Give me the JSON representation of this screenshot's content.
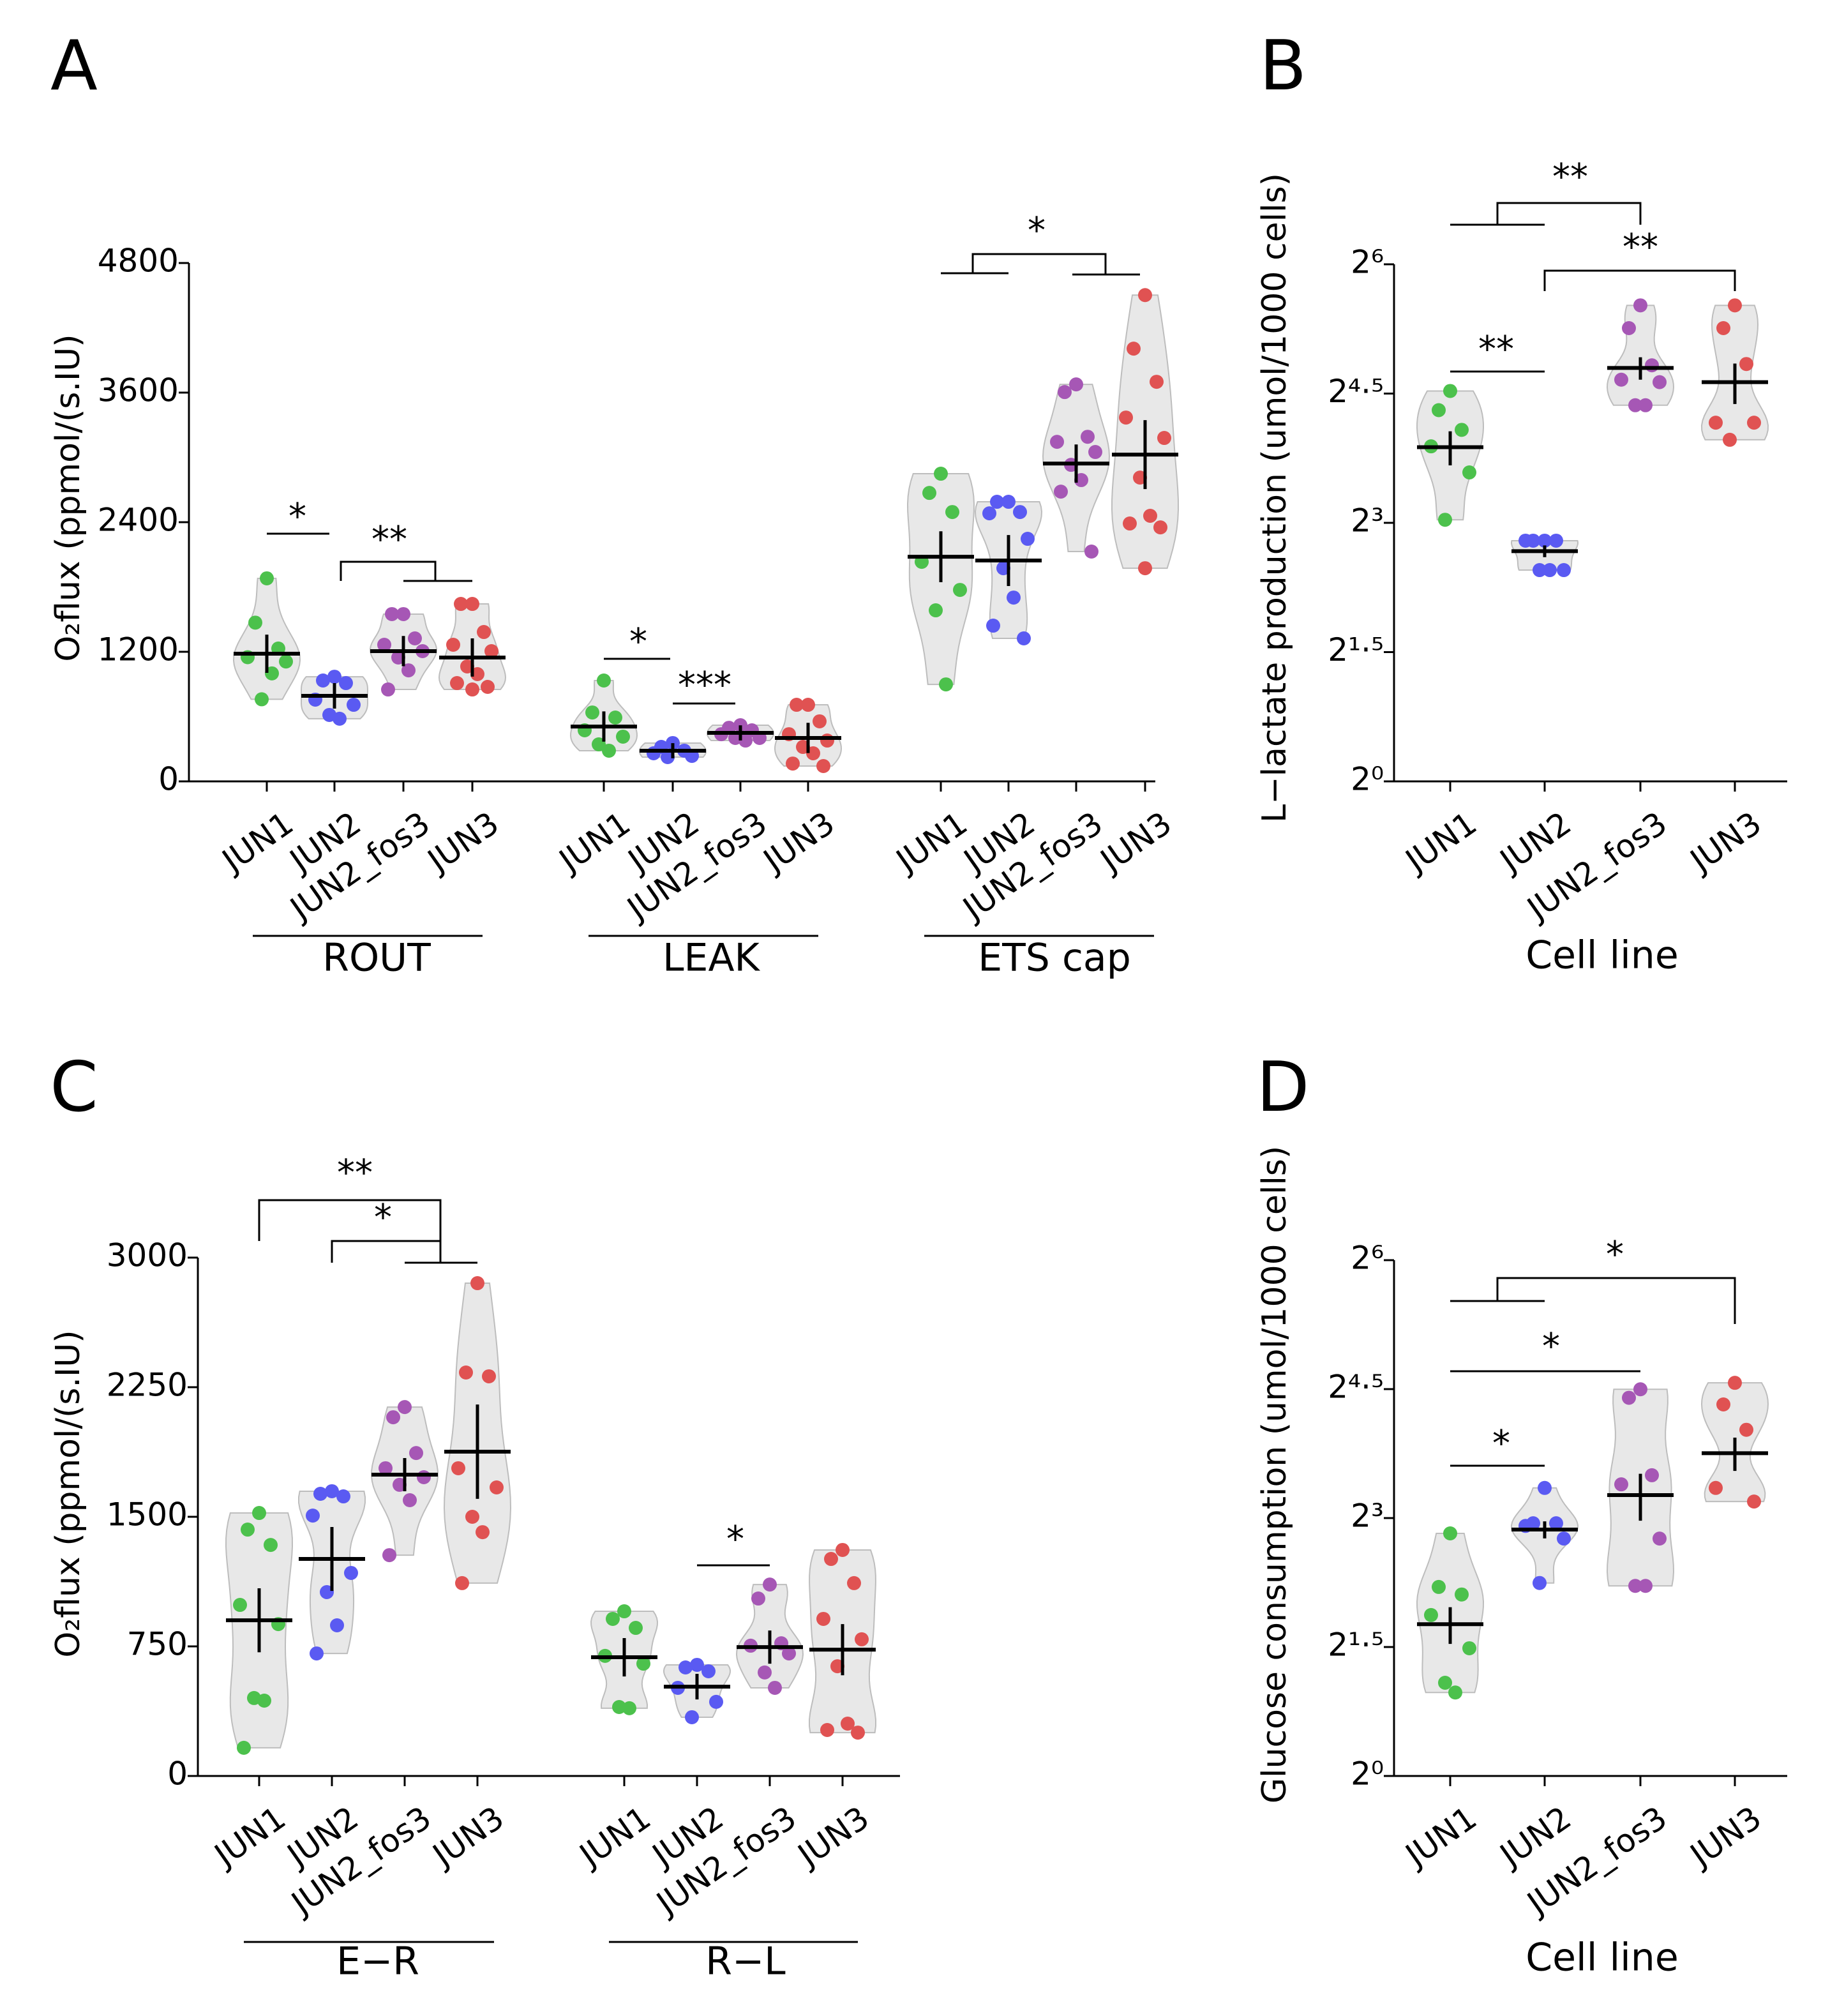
{
  "chart_data": [
    {
      "type": "violin",
      "panel_label": "A",
      "ylabel": "O₂flux (ppmol/(s.IU)",
      "ylim": [
        0,
        4800
      ],
      "yticks": [
        0,
        1200,
        2400,
        3600,
        4800
      ],
      "annotations": [
        "*",
        "**",
        "*",
        "***",
        "*"
      ],
      "groups": [
        {
          "name": "ROUT",
          "series": [
            {
              "name": "JUN1",
              "color": "#4cc14c",
              "values": [
                1880,
                1470,
                1230,
                1150,
                1110,
                760,
                1000
              ],
              "mean": 1182,
              "sem": 177
            },
            {
              "name": "JUN2",
              "color": "#5a5af2",
              "values": [
                969,
                934,
                910,
                757,
                709,
                615,
                580
              ],
              "mean": 792,
              "sem": 118
            },
            {
              "name": "JUN2_fos3",
              "color": "#a657b5",
              "values": [
                1549,
                1549,
                1324,
                1265,
                1206,
                1147,
                1028,
                851
              ],
              "mean": 1206,
              "sem": 140
            },
            {
              "name": "JUN3",
              "color": "#e05252",
              "values": [
                1643,
                1643,
                1383,
                1265,
                1206,
                1064,
                993,
                910,
                875,
                851
              ],
              "mean": 1147,
              "sem": 177
            }
          ]
        },
        {
          "name": "LEAK",
          "series": [
            {
              "name": "JUN1",
              "color": "#4cc14c",
              "values": [
                934,
                638,
                591,
                473,
                414,
                343,
                284
              ],
              "mean": 508,
              "sem": 140
            },
            {
              "name": "JUN2",
              "color": "#5a5af2",
              "values": [
                355,
                319,
                284,
                260,
                236,
                225
              ],
              "mean": 284,
              "sem": 70
            },
            {
              "name": "JUN2_fos3",
              "color": "#a657b5",
              "values": [
                520,
                496,
                473,
                437,
                402,
                402,
                378
              ],
              "mean": 449,
              "sem": 70
            },
            {
              "name": "JUN3",
              "color": "#e05252",
              "values": [
                709,
                709,
                556,
                437,
                378,
                319,
                260,
                165,
                142
              ],
              "mean": 402,
              "sem": 140
            }
          ]
        },
        {
          "name": "ETS cap",
          "series": [
            {
              "name": "JUN1",
              "color": "#4cc14c",
              "values": [
                2849,
                2671,
                2494,
                2033,
                1773,
                1584,
                898
              ],
              "mean": 2080,
              "sem": 236
            },
            {
              "name": "JUN2",
              "color": "#5a5af2",
              "values": [
                2589,
                2589,
                2494,
                2482,
                2246,
                1974,
                1702,
                1442,
                1324
              ],
              "mean": 2045,
              "sem": 236
            },
            {
              "name": "JUN2_fos3",
              "color": "#a657b5",
              "values": [
                3676,
                3605,
                3191,
                3144,
                3050,
                2931,
                2790,
                2683,
                2128
              ],
              "mean": 2943,
              "sem": 177
            },
            {
              "name": "JUN3",
              "color": "#e05252",
              "values": [
                4503,
                4007,
                3700,
                3369,
                3180,
                2813,
                2459,
                2388,
                2352,
                1974
              ],
              "mean": 3026,
              "sem": 319
            }
          ]
        }
      ]
    },
    {
      "type": "violin",
      "panel_label": "B",
      "ylabel": "L−lactate production (umol/1000 cells)",
      "xlabel": "Cell line",
      "yscale": "log2",
      "ylim": [
        1,
        64
      ],
      "yticks": [
        {
          "value": 1,
          "label": "2⁰"
        },
        {
          "value": 2.8284,
          "label": "2¹·⁵"
        },
        {
          "value": 8,
          "label": "2³"
        },
        {
          "value": 22.627,
          "label": "2⁴·⁵"
        },
        {
          "value": 64,
          "label": "2⁶"
        }
      ],
      "annotations": [
        "**",
        "**",
        "**"
      ],
      "series": [
        {
          "name": "JUN1",
          "color": "#4cc14c",
          "values": [
            23.1,
            19.8,
            16.9,
            14.8,
            12.0,
            8.2
          ],
          "mean": 14.7,
          "sem": 2.0
        },
        {
          "name": "JUN2",
          "color": "#5a5af2",
          "values": [
            6.93,
            6.93,
            6.93,
            6.93,
            5.47,
            5.47,
            5.47
          ],
          "mean": 6.37,
          "sem": 0.3
        },
        {
          "name": "JUN2_fos3",
          "color": "#a657b5",
          "values": [
            46.0,
            38.3,
            28.4,
            25.3,
            24.8,
            20.6,
            20.6
          ],
          "mean": 27.8,
          "sem": 2.5
        },
        {
          "name": "JUN3",
          "color": "#e05252",
          "values": [
            46.0,
            38.3,
            28.7,
            17.9,
            17.9,
            15.6
          ],
          "mean": 24.8,
          "sem": 4.0
        }
      ]
    },
    {
      "type": "violin",
      "panel_label": "C",
      "ylabel": "O₂flux (ppmol/(s.IU)",
      "ylim": [
        0,
        3000
      ],
      "yticks": [
        0,
        750,
        1500,
        2250,
        3000
      ],
      "annotations": [
        "**",
        "*",
        "*"
      ],
      "groups": [
        {
          "name": "E−R",
          "series": [
            {
              "name": "JUN1",
              "color": "#4cc14c",
              "values": [
                1522,
                1426,
                1337,
                990,
                879,
                451,
                436,
                163
              ],
              "mean": 901,
              "sem": 185
            },
            {
              "name": "JUN2",
              "color": "#5a5af2",
              "values": [
                1648,
                1633,
                1618,
                1507,
                1175,
                1064,
                872,
                709
              ],
              "mean": 1256,
              "sem": 185
            },
            {
              "name": "JUN2_fos3",
              "color": "#a657b5",
              "values": [
                2135,
                2076,
                1869,
                1781,
                1729,
                1685,
                1596,
                1278
              ],
              "mean": 1744,
              "sem": 96
            },
            {
              "name": "JUN3",
              "color": "#e05252",
              "values": [
                2852,
                2335,
                2313,
                1781,
                1670,
                1500,
                1411,
                1116
              ],
              "mean": 1877,
              "sem": 273
            }
          ]
        },
        {
          "name": "R−L",
          "series": [
            {
              "name": "JUN1",
              "color": "#4cc14c",
              "values": [
                953,
                909,
                857,
                695,
                650,
                399,
                392
              ],
              "mean": 687,
              "sem": 111
            },
            {
              "name": "JUN2",
              "color": "#5a5af2",
              "values": [
                643,
                628,
                606,
                510,
                429,
                340
              ],
              "mean": 517,
              "sem": 74
            },
            {
              "name": "JUN2_fos3",
              "color": "#a657b5",
              "values": [
                1108,
                1027,
                768,
                754,
                709,
                599,
                510
              ],
              "mean": 746,
              "sem": 96
            },
            {
              "name": "JUN3",
              "color": "#e05252",
              "values": [
                1308,
                1256,
                1116,
                909,
                791,
                635,
                303,
                266,
                251
              ],
              "mean": 731,
              "sem": 148
            }
          ]
        }
      ]
    },
    {
      "type": "violin",
      "panel_label": "D",
      "ylabel": "Glucose consumption (umol/1000 cells)",
      "xlabel": "Cell line",
      "yscale": "log2",
      "ylim": [
        1,
        64
      ],
      "yticks": [
        {
          "value": 1,
          "label": "2⁰"
        },
        {
          "value": 2.8284,
          "label": "2¹·⁵"
        },
        {
          "value": 8,
          "label": "2³"
        },
        {
          "value": 22.627,
          "label": "2⁴·⁵"
        },
        {
          "value": 64,
          "label": "2⁶"
        }
      ],
      "annotations": [
        "*",
        "*",
        "*"
      ],
      "series": [
        {
          "name": "JUN1",
          "color": "#4cc14c",
          "values": [
            7.07,
            4.59,
            4.32,
            3.66,
            2.8,
            2.12,
            1.96
          ],
          "mean": 3.4,
          "sem": 0.5
        },
        {
          "name": "JUN2",
          "color": "#5a5af2",
          "values": [
            10.2,
            7.67,
            7.67,
            7.51,
            6.78,
            4.74
          ],
          "mean": 7.29,
          "sem": 0.5
        },
        {
          "name": "JUN2_fos3",
          "color": "#a657b5",
          "values": [
            22.6,
            21.1,
            11.3,
            10.5,
            6.78,
            4.63,
            4.63
          ],
          "mean": 9.63,
          "sem": 1.8
        },
        {
          "name": "JUN3",
          "color": "#e05252",
          "values": [
            23.8,
            20.0,
            16.3,
            10.2,
            9.14
          ],
          "mean": 13.5,
          "sem": 1.8
        }
      ]
    }
  ]
}
